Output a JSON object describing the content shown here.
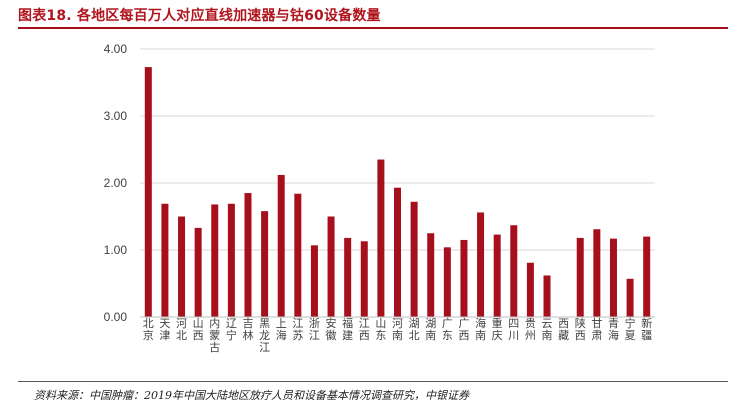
{
  "figure": {
    "title": "图表18. 各地区每百万人对应直线加速器与钴60设备数量",
    "source": "资料来源：中国肿瘤：2019年中国大陆地区放疗人员和设备基本情况调查研究，中银证券"
  },
  "chart_data": {
    "type": "bar",
    "title": "",
    "xlabel": "",
    "ylabel": "",
    "ylim": [
      0,
      4
    ],
    "yticks": [
      "0.00",
      "1.00",
      "2.00",
      "3.00",
      "4.00"
    ],
    "grid": true,
    "legend": "none",
    "bar_color": "#a6101c",
    "grid_color": "#d9d9d9",
    "categories": [
      "北京",
      "天津",
      "河北",
      "山西",
      "内蒙古",
      "辽宁",
      "吉林",
      "黑龙江",
      "上海",
      "江苏",
      "浙江",
      "安徽",
      "福建",
      "江西",
      "山东",
      "河南",
      "湖北",
      "湖南",
      "广东",
      "广西",
      "海南",
      "重庆",
      "四川",
      "贵州",
      "云南",
      "西藏",
      "陕西",
      "甘肃",
      "青海",
      "宁夏",
      "新疆"
    ],
    "values": [
      3.73,
      1.69,
      1.5,
      1.33,
      1.68,
      1.69,
      1.85,
      1.58,
      2.12,
      1.84,
      1.07,
      1.5,
      1.18,
      1.13,
      2.35,
      1.93,
      1.72,
      1.25,
      1.04,
      1.15,
      1.56,
      1.23,
      1.37,
      0.81,
      0.62,
      0.0,
      1.18,
      1.31,
      1.17,
      0.57,
      1.2
    ]
  }
}
